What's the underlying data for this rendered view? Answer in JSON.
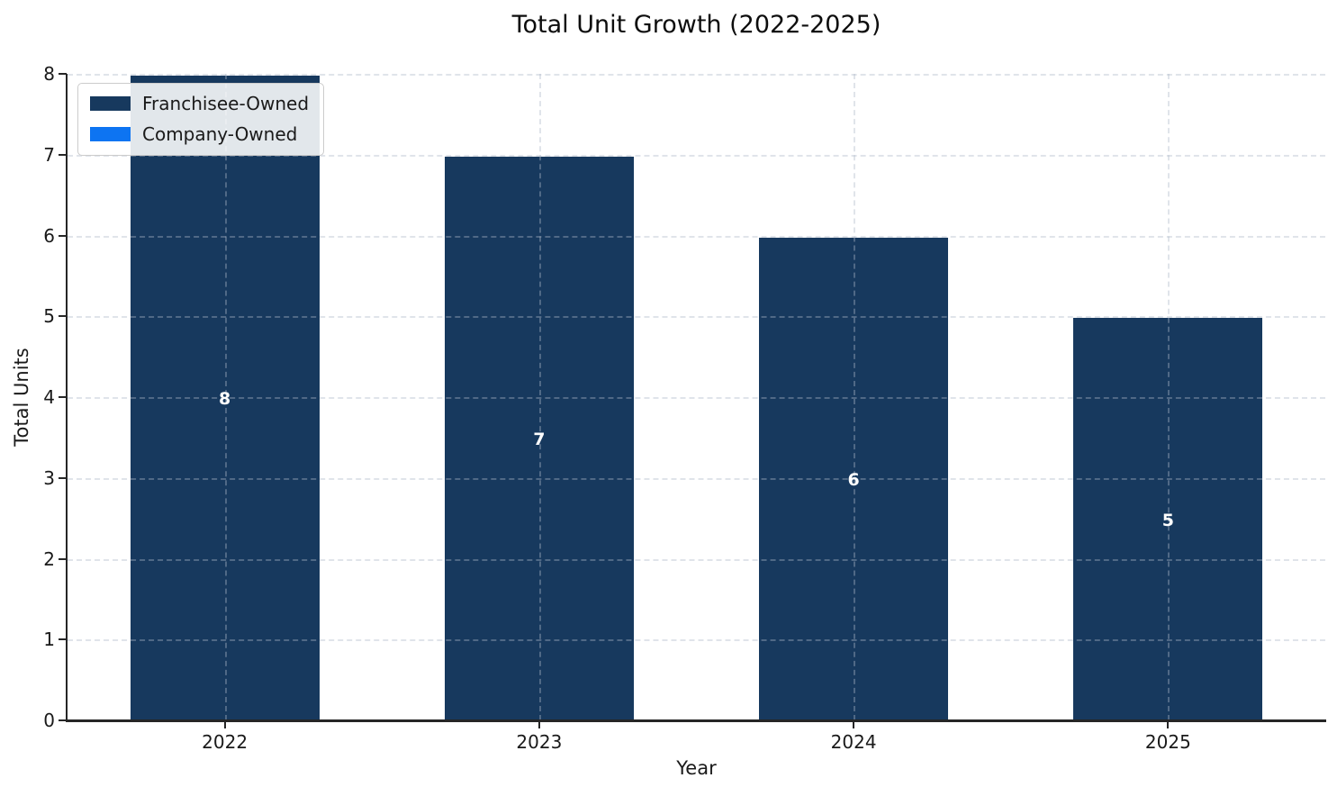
{
  "chart_data": {
    "type": "bar",
    "stacked": true,
    "title": "Total Unit Growth (2022-2025)",
    "xlabel": "Year",
    "ylabel": "Total Units",
    "categories": [
      "2022",
      "2023",
      "2024",
      "2025"
    ],
    "series": [
      {
        "name": "Franchisee-Owned",
        "color": "#17395e",
        "values": [
          8,
          7,
          6,
          5
        ]
      },
      {
        "name": "Company-Owned",
        "color": "#0d74f2",
        "values": [
          0,
          0,
          0,
          0
        ]
      }
    ],
    "bar_labels": [
      "8",
      "7",
      "6",
      "5"
    ],
    "ylim": [
      0,
      8
    ],
    "yticks": [
      0,
      1,
      2,
      3,
      4,
      5,
      6,
      7,
      8
    ],
    "grid": "dashed, horizontal and vertical, drawn over bars",
    "legend_position": "upper-left",
    "colors": {
      "franchisee_owned": "#17395e",
      "company_owned": "#0d74f2",
      "bar_value_text": "#ffffff",
      "axis_spine": "#262626",
      "grid_line": "#d9dce2"
    }
  }
}
